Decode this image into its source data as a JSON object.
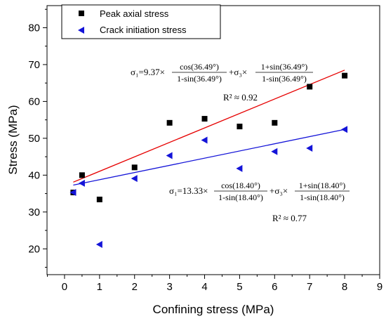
{
  "chart_data": {
    "type": "scatter",
    "title": "",
    "xlabel": "Confining stress (MPa)",
    "ylabel": "Stress (MPa)",
    "xlim": [
      -0.5,
      9
    ],
    "ylim": [
      13,
      86
    ],
    "x_ticks": [
      "0",
      "1",
      "2",
      "3",
      "4",
      "5",
      "6",
      "7",
      "8",
      "9"
    ],
    "y_ticks": [
      "20",
      "30",
      "40",
      "50",
      "60",
      "70",
      "80"
    ],
    "grid": false,
    "legend_position": "top-left",
    "series": [
      {
        "name": "Peak axial stress",
        "marker": "square",
        "color": "#000000",
        "x": [
          0.25,
          0.5,
          1,
          2,
          3,
          4,
          5,
          6,
          7,
          8
        ],
        "y": [
          35.3,
          40.0,
          33.4,
          42.1,
          54.2,
          55.3,
          53.2,
          54.2,
          64.0,
          67.0
        ]
      },
      {
        "name": "Crack initiation stress",
        "marker": "triangle-left",
        "color": "#1414d8",
        "x": [
          0.25,
          0.5,
          1,
          2,
          3,
          4,
          5,
          6,
          7,
          8
        ],
        "y": [
          35.3,
          37.8,
          21.2,
          39.1,
          45.3,
          49.5,
          41.8,
          46.4,
          47.3,
          52.4
        ]
      }
    ],
    "fit_lines": [
      {
        "color": "#e60000",
        "x": [
          0.25,
          8
        ],
        "y": [
          38.1,
          68.5
        ],
        "equation": {
          "lhs": "σ₁=9.37×",
          "frac1_num": "cos(36.49°)",
          "frac1_den": "1-sin(36.49°)",
          "mid": "+σ₃×",
          "frac2_num": "1+sin(36.49°)",
          "frac2_den": "1-sin(36.49°)"
        },
        "r2": "R² ≈ 0.92"
      },
      {
        "color": "#1414d8",
        "x": [
          0.25,
          8
        ],
        "y": [
          37.3,
          52.4
        ],
        "equation": {
          "lhs": "σ₁=13.33×",
          "frac1_num": "cos(18.40°)",
          "frac1_den": "1-sin(18.40°)",
          "mid": "+σ₃×",
          "frac2_num": "1+sin(18.40°)",
          "frac2_den": "1-sin(18.40°)"
        },
        "r2": "R² ≈ 0.77"
      }
    ]
  }
}
